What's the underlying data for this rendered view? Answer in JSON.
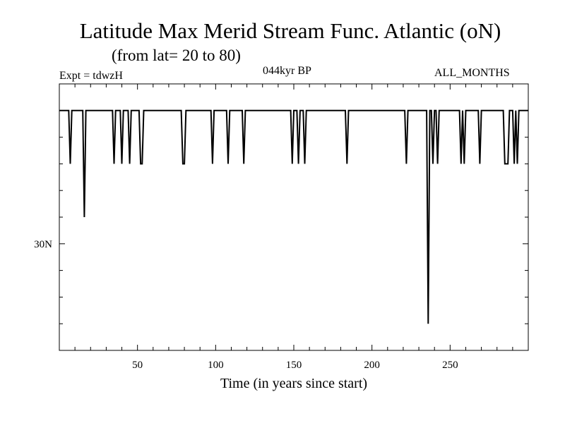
{
  "header": {
    "title": "Latitude Max Merid Stream Func. Atlantic (oN)",
    "subtitle": "(from lat= 20 to 80)",
    "expt": "Expt = tdwzH",
    "period": "044kyr BP",
    "months": "ALL_MONTHS"
  },
  "chart_data": {
    "type": "line",
    "title": "Latitude Max Merid Stream Func. Atlantic (oN)",
    "subtitle": "(from lat= 20 to 80)",
    "xlabel": "Time (in years since start)",
    "ylabel": "",
    "xlim": [
      0,
      300
    ],
    "ylim": [
      20,
      45
    ],
    "x_ticks": [
      50,
      100,
      150,
      200,
      250
    ],
    "x_tick_labels": [
      "50",
      "100",
      "150",
      "200",
      "250"
    ],
    "y_ticks": [
      30
    ],
    "y_tick_labels": [
      "30N"
    ],
    "grid": false,
    "baseline": 42.5,
    "series": [
      {
        "color": "#000000",
        "x": [
          0,
          6,
          7,
          8,
          15,
          16,
          17,
          34,
          35,
          36,
          39,
          40,
          41,
          44,
          45,
          46,
          51,
          52,
          53,
          54,
          55,
          78,
          79,
          80,
          81,
          82,
          97,
          98,
          99,
          107,
          108,
          109,
          117,
          118,
          119,
          148,
          149,
          150,
          152,
          153,
          154,
          156,
          157,
          158,
          183,
          184,
          185,
          221,
          222,
          223,
          235,
          236,
          237,
          238,
          239,
          240,
          241,
          242,
          243,
          256,
          257,
          258,
          259,
          260,
          268,
          269,
          270,
          284,
          285,
          286,
          287,
          288,
          290,
          291,
          292,
          293,
          294,
          300
        ],
        "y": [
          42.5,
          42.5,
          37.5,
          42.5,
          42.5,
          32.5,
          42.5,
          42.5,
          37.5,
          42.5,
          42.5,
          37.5,
          42.5,
          42.5,
          37.5,
          42.5,
          42.5,
          37.5,
          37.5,
          42.5,
          42.5,
          42.5,
          37.5,
          37.5,
          42.5,
          42.5,
          42.5,
          37.5,
          42.5,
          42.5,
          37.5,
          42.5,
          42.5,
          37.5,
          42.5,
          42.5,
          37.5,
          42.5,
          42.5,
          37.5,
          42.5,
          42.5,
          37.5,
          42.5,
          42.5,
          37.5,
          42.5,
          42.5,
          37.5,
          42.5,
          42.5,
          22.5,
          42.5,
          42.5,
          37.5,
          42.5,
          42.5,
          37.5,
          42.5,
          42.5,
          37.5,
          42.5,
          37.5,
          42.5,
          42.5,
          37.5,
          42.5,
          42.5,
          37.5,
          37.5,
          37.5,
          42.5,
          42.5,
          37.5,
          42.5,
          37.5,
          42.5,
          42.5
        ]
      }
    ]
  }
}
